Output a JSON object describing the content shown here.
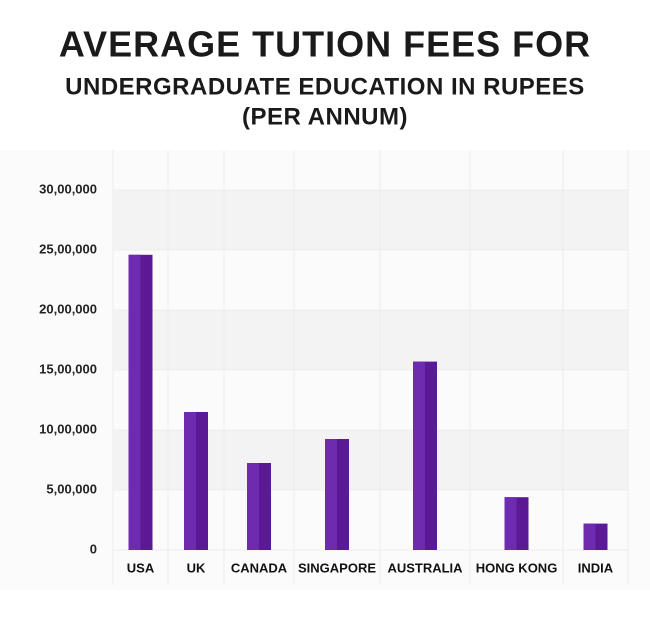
{
  "chart_data": {
    "type": "bar",
    "title_lines": [
      "AVERAGE TUTION FEES FOR",
      "UNDERGRADUATE EDUCATION IN RUPEES",
      "(PER ANNUM)"
    ],
    "categories": [
      "USA",
      "UK",
      "CANADA",
      "SINGAPORE",
      "AUSTRALIA",
      "HONG KONG",
      "INDIA"
    ],
    "values": [
      2460000,
      1150000,
      725000,
      925000,
      1570000,
      440000,
      220000
    ],
    "color": "#5a1a96",
    "ylim": [
      0,
      3000000
    ],
    "yticks": [
      0,
      {
        "value": 500000,
        "label": "5,00,000"
      },
      {
        "value": 1000000,
        "label": "10,00,000"
      },
      {
        "value": 1500000,
        "label": "15,00,000"
      },
      {
        "value": 2000000,
        "label": "20,00,000"
      },
      {
        "value": 2500000,
        "label": "25,00,000"
      },
      {
        "value": 3000000,
        "label": "30,00,000"
      }
    ],
    "grid": true
  }
}
